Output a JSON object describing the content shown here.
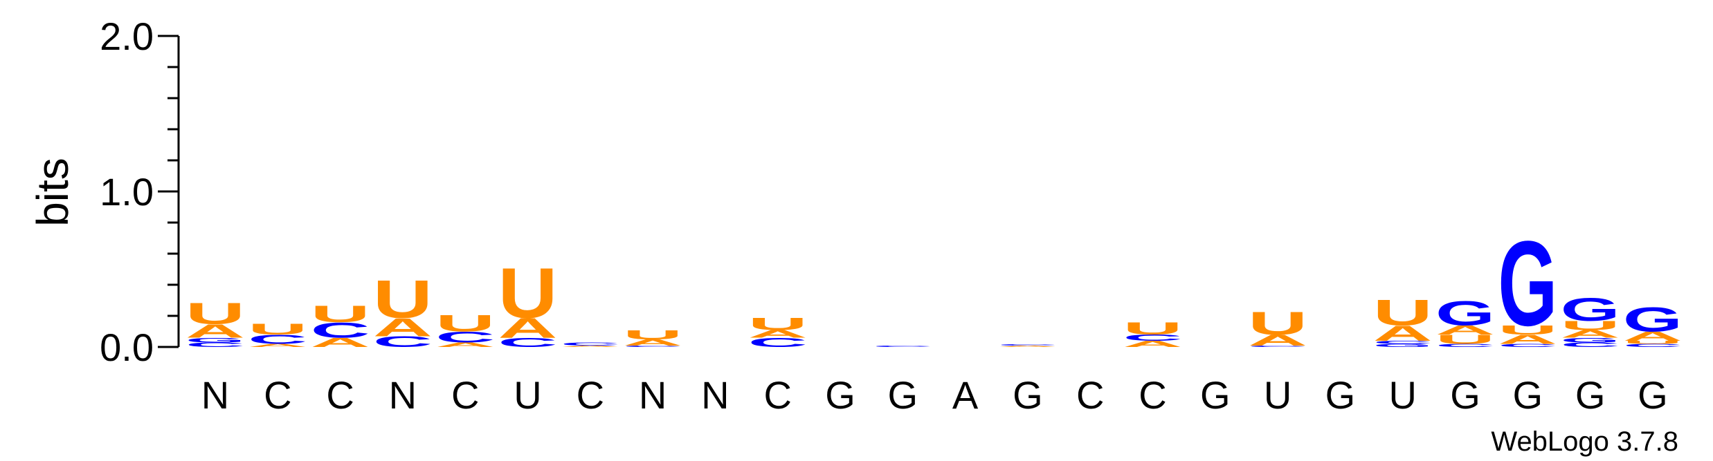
{
  "chart_data": {
    "type": "sequence-logo",
    "ylabel": "bits",
    "ylim": [
      0,
      2.0
    ],
    "yticks": [
      "0.0",
      "1.0",
      "2.0"
    ],
    "credit": "WebLogo 3.7.8",
    "colors": {
      "A": "#FF8C00",
      "U": "#FF8C00",
      "C": "#0000FF",
      "G": "#0000FF"
    },
    "x_labels": [
      "N",
      "C",
      "C",
      "N",
      "C",
      "U",
      "C",
      "N",
      "N",
      "C",
      "G",
      "G",
      "A",
      "G",
      "C",
      "C",
      "G",
      "U",
      "G",
      "U",
      "G",
      "G",
      "G",
      "G"
    ],
    "positions": [
      {
        "stack": [
          [
            "C",
            0.03
          ],
          [
            "G",
            0.03
          ],
          [
            "A",
            0.09
          ],
          [
            "U",
            0.14
          ]
        ]
      },
      {
        "stack": [
          [
            "A",
            0.02
          ],
          [
            "C",
            0.06
          ],
          [
            "U",
            0.07
          ]
        ]
      },
      {
        "stack": [
          [
            "A",
            0.06
          ],
          [
            "C",
            0.1
          ],
          [
            "U",
            0.11
          ]
        ]
      },
      {
        "stack": [
          [
            "C",
            0.07
          ],
          [
            "A",
            0.12
          ],
          [
            "U",
            0.25
          ]
        ]
      },
      {
        "stack": [
          [
            "A",
            0.03
          ],
          [
            "C",
            0.07
          ],
          [
            "U",
            0.11
          ]
        ]
      },
      {
        "stack": [
          [
            "C",
            0.06
          ],
          [
            "A",
            0.13
          ],
          [
            "U",
            0.33
          ]
        ]
      },
      {
        "stack": [
          [
            "A",
            0.01
          ],
          [
            "C",
            0.02
          ]
        ]
      },
      {
        "stack": [
          [
            "C",
            0.01
          ],
          [
            "A",
            0.04
          ],
          [
            "U",
            0.06
          ]
        ]
      },
      {
        "stack": []
      },
      {
        "stack": [
          [
            "C",
            0.06
          ],
          [
            "A",
            0.05
          ],
          [
            "U",
            0.08
          ]
        ]
      },
      {
        "stack": []
      },
      {
        "stack": [
          [
            "C",
            0.01
          ]
        ]
      },
      {
        "stack": []
      },
      {
        "stack": [
          [
            "A",
            0.01
          ],
          [
            "C",
            0.01
          ]
        ]
      },
      {
        "stack": []
      },
      {
        "stack": [
          [
            "A",
            0.04
          ],
          [
            "C",
            0.04
          ],
          [
            "U",
            0.08
          ]
        ]
      },
      {
        "stack": []
      },
      {
        "stack": [
          [
            "C",
            0.01
          ],
          [
            "A",
            0.07
          ],
          [
            "U",
            0.15
          ]
        ]
      },
      {
        "stack": []
      },
      {
        "stack": [
          [
            "G",
            0.02
          ],
          [
            "C",
            0.02
          ],
          [
            "A",
            0.1
          ],
          [
            "U",
            0.17
          ]
        ]
      },
      {
        "stack": [
          [
            "C",
            0.02
          ],
          [
            "U",
            0.06
          ],
          [
            "A",
            0.06
          ],
          [
            "G",
            0.16
          ]
        ]
      },
      {
        "stack": [
          [
            "C",
            0.02
          ],
          [
            "A",
            0.06
          ],
          [
            "U",
            0.06
          ],
          [
            "G",
            0.56
          ]
        ]
      },
      {
        "stack": [
          [
            "C",
            0.03
          ],
          [
            "G",
            0.03
          ],
          [
            "A",
            0.05
          ],
          [
            "U",
            0.06
          ],
          [
            "G",
            0.15
          ]
        ]
      },
      {
        "stack": [
          [
            "C",
            0.02
          ],
          [
            "U",
            0.02
          ],
          [
            "A",
            0.06
          ],
          [
            "G",
            0.16
          ]
        ]
      }
    ]
  }
}
